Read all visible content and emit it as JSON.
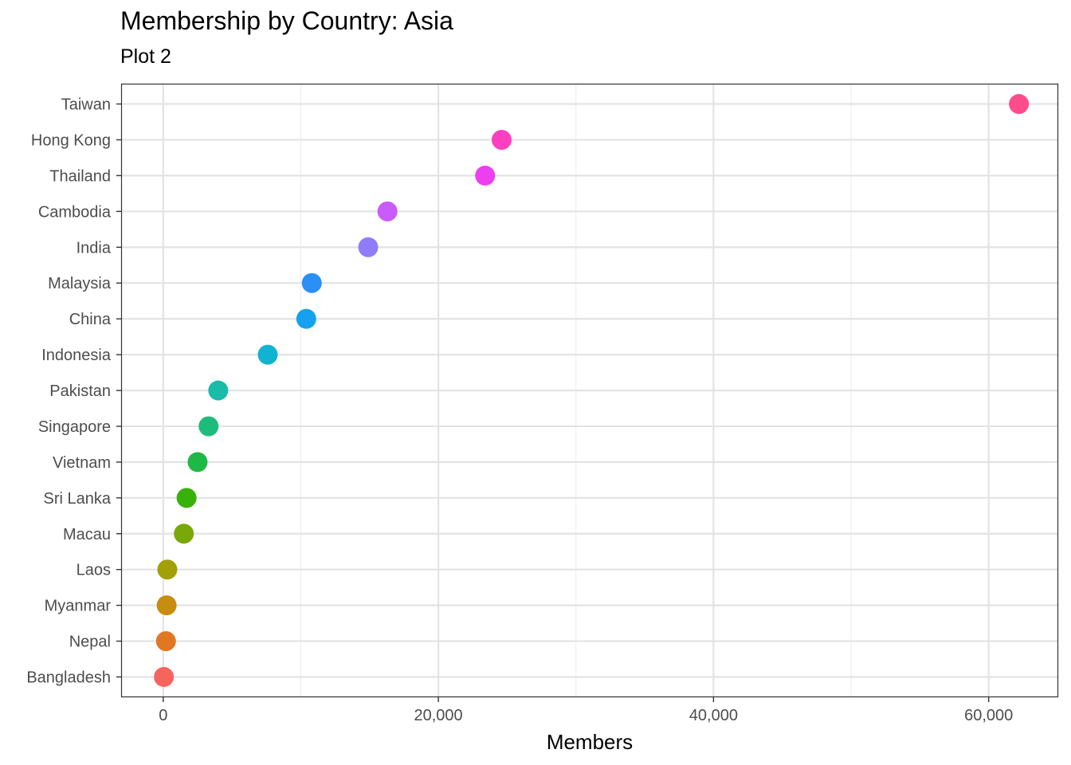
{
  "chart_data": {
    "type": "scatter",
    "title": "Membership by Country: Asia",
    "subtitle": "Plot 2",
    "xlabel": "Members",
    "ylabel": "",
    "xlim": [
      -3000,
      65000
    ],
    "xticks": [
      0,
      20000,
      40000,
      60000
    ],
    "xtick_labels": [
      "0",
      "20,000",
      "40,000",
      "60,000"
    ],
    "grid": true,
    "legend": "none",
    "points": [
      {
        "country": "Taiwan",
        "members": 62200,
        "color": "#FF4C8A"
      },
      {
        "country": "Hong Kong",
        "members": 24600,
        "color": "#FB3FC1"
      },
      {
        "country": "Thailand",
        "members": 23400,
        "color": "#ED3FEF"
      },
      {
        "country": "Cambodia",
        "members": 16300,
        "color": "#C85BF9"
      },
      {
        "country": "India",
        "members": 14900,
        "color": "#8F7CF9"
      },
      {
        "country": "Malaysia",
        "members": 10800,
        "color": "#2A8FF7"
      },
      {
        "country": "China",
        "members": 10400,
        "color": "#14A2EE"
      },
      {
        "country": "Indonesia",
        "members": 7600,
        "color": "#12B3D2"
      },
      {
        "country": "Pakistan",
        "members": 4000,
        "color": "#1BBBA9"
      },
      {
        "country": "Singapore",
        "members": 3300,
        "color": "#1DBC7E"
      },
      {
        "country": "Vietnam",
        "members": 2500,
        "color": "#1FB845"
      },
      {
        "country": "Sri Lanka",
        "members": 1700,
        "color": "#38B10A"
      },
      {
        "country": "Macau",
        "members": 1500,
        "color": "#79A909"
      },
      {
        "country": "Laos",
        "members": 300,
        "color": "#A39F09"
      },
      {
        "country": "Myanmar",
        "members": 250,
        "color": "#C78D0F"
      },
      {
        "country": "Nepal",
        "members": 200,
        "color": "#E27721"
      },
      {
        "country": "Bangladesh",
        "members": 50,
        "color": "#F6645E"
      }
    ]
  }
}
